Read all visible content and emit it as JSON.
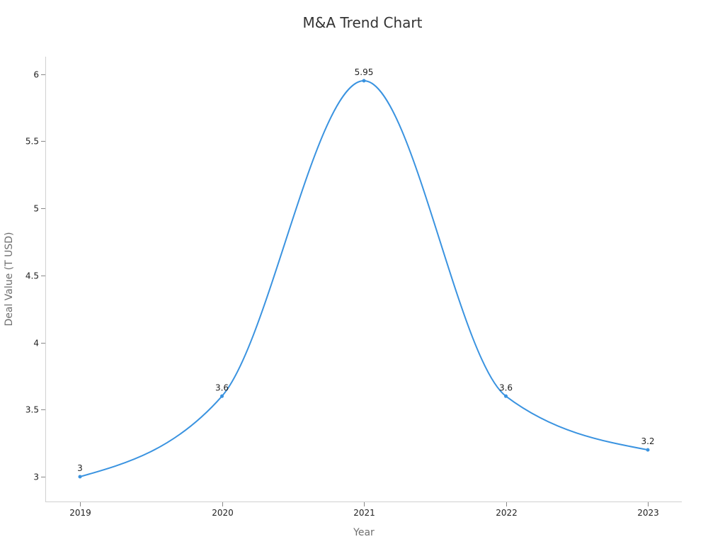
{
  "chart_data": {
    "type": "line",
    "title": "M&A Trend Chart",
    "xlabel": "Year",
    "ylabel": "Deal Value (T USD)",
    "categories": [
      "2019",
      "2020",
      "2021",
      "2022",
      "2023"
    ],
    "series": [
      {
        "name": "Deal Value (T USD)",
        "values": [
          3,
          3.6,
          5.95,
          3.6,
          3.2
        ],
        "color": "#3a93e0",
        "smooth": true,
        "data_labels": [
          "3",
          "3.6",
          "5.95",
          "3.6",
          "3.2"
        ]
      }
    ],
    "yticks": [
      "3",
      "3.5",
      "4",
      "4.5",
      "5",
      "5.5",
      "6"
    ],
    "ylim": [
      2.82,
      6.13
    ],
    "grid": false,
    "legend": "none"
  },
  "colors": {
    "line": "#3a93e0",
    "axis": "#d0d0d0",
    "tick": "#888888",
    "text": "#222222",
    "axis_title": "#6e6e6e"
  }
}
